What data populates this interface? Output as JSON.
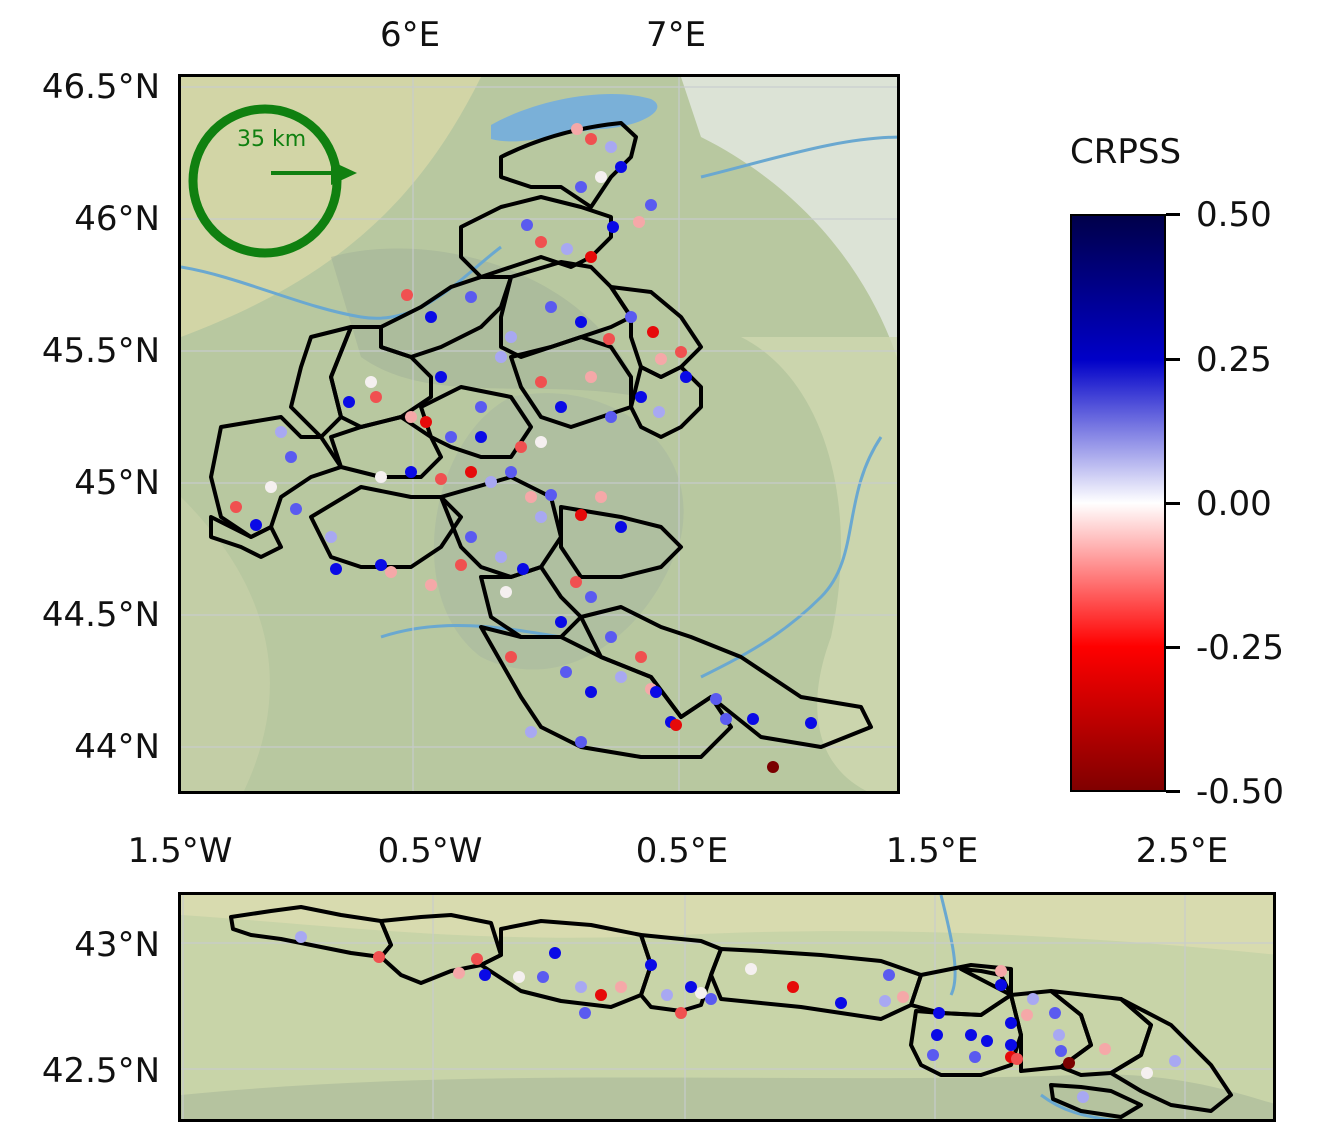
{
  "colorbar": {
    "title": "CRPSS",
    "ticks": [
      "0.50",
      "0.25",
      "0.00",
      "-0.25",
      "-0.50"
    ],
    "colors": {
      "max": "#00004a",
      "high": "#0000c8",
      "mid": "#ffffff",
      "low": "#ff0000",
      "min": "#800000"
    }
  },
  "scale_bar": {
    "label": "35 km",
    "color": "#108010"
  },
  "alps_map": {
    "lon_labels": [
      "6°E",
      "7°E"
    ],
    "lat_labels": [
      "46.5°N",
      "46°N",
      "45.5°N",
      "45°N",
      "44.5°N",
      "44°N"
    ]
  },
  "pyrenees_map": {
    "lon_labels": [
      "1.5°W",
      "0.5°W",
      "0.5°E",
      "1.5°E",
      "2.5°E"
    ],
    "lat_labels": [
      "43°N",
      "42.5°N"
    ]
  },
  "station_colors": {
    "strong_blue": "#0a0ae6",
    "mid_blue": "#5a5af0",
    "light_blue": "#a8a8f2",
    "white": "#f5f0f0",
    "light_red": "#f5a8a8",
    "mid_red": "#f05050",
    "strong_red": "#e60a0a",
    "dark_red": "#7a0000"
  }
}
